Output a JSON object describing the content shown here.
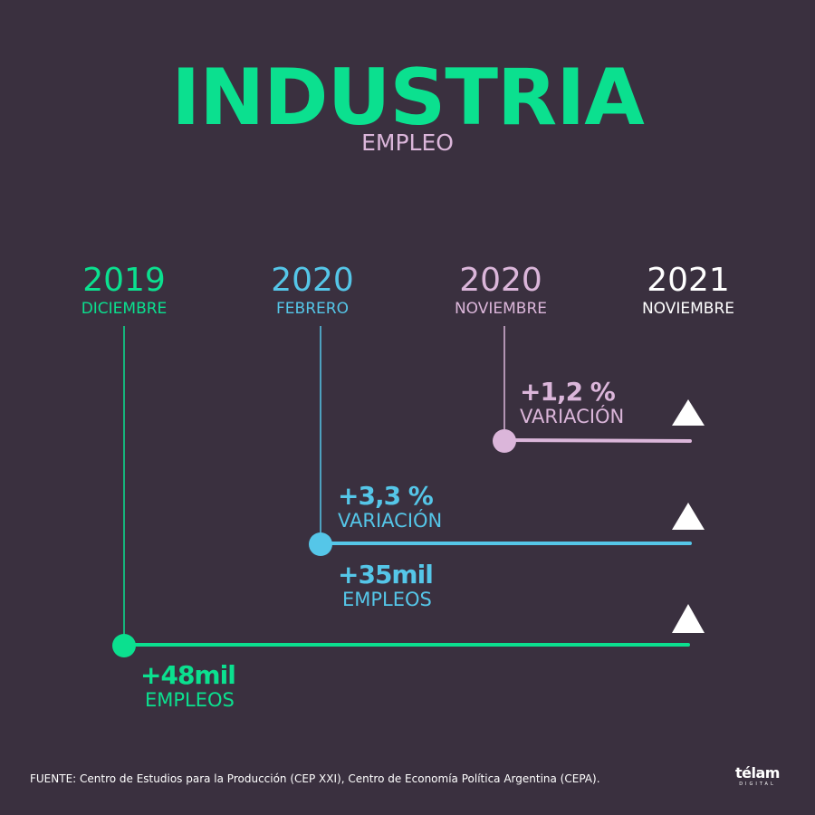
{
  "header": {
    "title": "INDUSTRIA",
    "subtitle": "EMPLEO"
  },
  "colors": {
    "background": "#3a303f",
    "green": "#0be08f",
    "blue": "#55c6e8",
    "pink": "#dbb6da",
    "white": "#ffffff"
  },
  "chart_data": {
    "type": "timeline",
    "title": "INDUSTRIA",
    "subtitle": "EMPLEO",
    "periods": [
      {
        "year": "2019",
        "month": "DICIEMBRE",
        "color": "#0be08f"
      },
      {
        "year": "2020",
        "month": "FEBRERO",
        "color": "#55c6e8"
      },
      {
        "year": "2020",
        "month": "NOVIEMBRE",
        "color": "#dbb6da"
      },
      {
        "year": "2021",
        "month": "NOVIEMBRE",
        "color": "#ffffff"
      }
    ],
    "series": [
      {
        "name": "pink",
        "from_period": 2,
        "to_period": 3,
        "top_value": "+1,2 %",
        "top_label": "VARIACIÓN",
        "bottom_value": "",
        "bottom_label": "",
        "color": "#dbb6da",
        "trend": "up-triangle-icon"
      },
      {
        "name": "blue",
        "from_period": 1,
        "to_period": 3,
        "top_value": "+3,3 %",
        "top_label": "VARIACIÓN",
        "bottom_value": "+35mil",
        "bottom_label": "EMPLEOS",
        "color": "#55c6e8",
        "trend": "up-triangle-icon"
      },
      {
        "name": "green",
        "from_period": 0,
        "to_period": 3,
        "top_value": "",
        "top_label": "",
        "bottom_value": "+48mil",
        "bottom_label": "EMPLEOS",
        "color": "#0be08f",
        "trend": "up-triangle-icon"
      }
    ]
  },
  "footer": {
    "source": "FUENTE: Centro de Estudios para la Producción (CEP XXI), Centro de Economía Política Argentina (CEPA).",
    "logo_word": "télam",
    "logo_sub": "DIGITAL"
  }
}
